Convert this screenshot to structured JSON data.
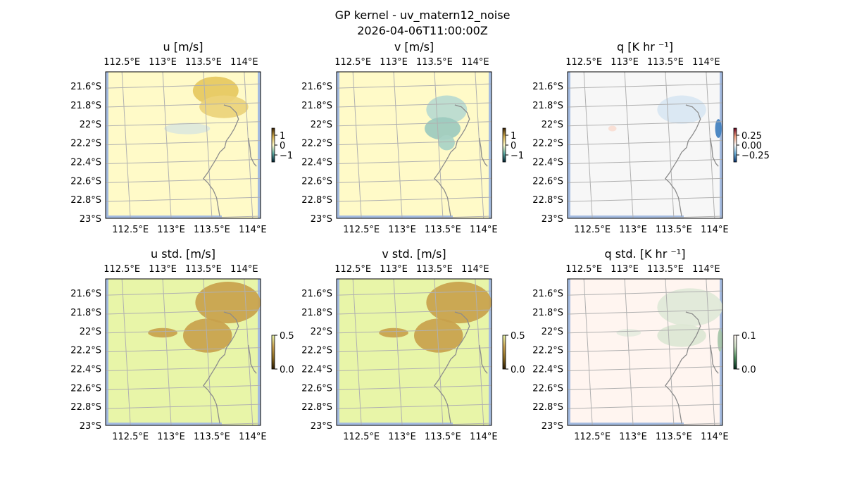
{
  "figure": {
    "title_line1": "GP kernel - uv_matern12_noise",
    "title_line2": "2026-04-06T11:00:00Z"
  },
  "colors": {
    "ocean": "#a4bbe0",
    "grid": "#b0b0b0",
    "coast": "#8c8c8c",
    "frame": "#000000"
  },
  "chart_data": [
    {
      "id": "u",
      "type": "heatmap",
      "title": "u [m/s]",
      "xlabel": "",
      "ylabel": "",
      "x_ticks": [
        "112.5°E",
        "113°E",
        "113.5°E",
        "114°E"
      ],
      "y_ticks": [
        "21.6°S",
        "21.8°S",
        "22°S",
        "22.2°S",
        "22.4°S",
        "22.6°S",
        "22.8°S",
        "23°S"
      ],
      "xlim": [
        112.3,
        114.2
      ],
      "ylim": [
        -23.0,
        -21.45
      ],
      "colorbar": {
        "ticks": [
          "1",
          "0",
          "−1"
        ],
        "range": [
          -1,
          1
        ],
        "stops": [
          "#002030",
          "#5aa8a0",
          "#fffac8",
          "#d4b050",
          "#3a2000"
        ]
      },
      "background": "#fffac8",
      "patches": [
        {
          "lon": 113.65,
          "lat": -21.65,
          "value": 0.45,
          "color": "#e6c85e",
          "rx": 0.28,
          "ry": 0.15
        },
        {
          "lon": 113.75,
          "lat": -21.82,
          "value": 0.3,
          "color": "#ecd37a",
          "rx": 0.3,
          "ry": 0.12
        },
        {
          "lon": 113.3,
          "lat": -22.05,
          "value": -0.1,
          "color": "#dde8dc",
          "rx": 0.28,
          "ry": 0.06
        }
      ]
    },
    {
      "id": "v",
      "type": "heatmap",
      "title": "v [m/s]",
      "xlabel": "",
      "ylabel": "",
      "x_ticks": [
        "112.5°E",
        "113°E",
        "113.5°E",
        "114°E"
      ],
      "y_ticks": [
        "21.6°S",
        "21.8°S",
        "22°S",
        "22.2°S",
        "22.4°S",
        "22.6°S",
        "22.8°S",
        "23°S"
      ],
      "xlim": [
        112.3,
        114.2
      ],
      "ylim": [
        -23.0,
        -21.45
      ],
      "colorbar": {
        "ticks": [
          "1",
          "0",
          "−1"
        ],
        "range": [
          -1,
          1
        ],
        "stops": [
          "#002030",
          "#5aa8a0",
          "#fffac8",
          "#d4b050",
          "#3a2000"
        ]
      },
      "background": "#fffac8",
      "patches": [
        {
          "lon": 113.65,
          "lat": -21.85,
          "value": -0.4,
          "color": "#b8dad0",
          "rx": 0.25,
          "ry": 0.15
        },
        {
          "lon": 113.6,
          "lat": -22.05,
          "value": -0.55,
          "color": "#9ccabe",
          "rx": 0.22,
          "ry": 0.12
        },
        {
          "lon": 113.65,
          "lat": -22.2,
          "value": -0.5,
          "color": "#a8d2c6",
          "rx": 0.1,
          "ry": 0.08
        }
      ]
    },
    {
      "id": "q",
      "type": "heatmap",
      "title": "q [K hr ⁻¹]",
      "xlabel": "",
      "ylabel": "",
      "x_ticks": [
        "112.5°E",
        "113°E",
        "113.5°E",
        "114°E"
      ],
      "y_ticks": [
        "21.6°S",
        "21.8°S",
        "22°S",
        "22.2°S",
        "22.4°S",
        "22.6°S",
        "22.8°S",
        "23°S"
      ],
      "xlim": [
        112.3,
        114.2
      ],
      "ylim": [
        -23.0,
        -21.45
      ],
      "colorbar": {
        "ticks": [
          "0.25",
          "0.00",
          "−0.25"
        ],
        "range": [
          -0.35,
          0.35
        ],
        "stops": [
          "#08306b",
          "#6baed6",
          "#f7f7f7",
          "#f4a582",
          "#67001f"
        ]
      },
      "background": "#f7f7f7",
      "patches": [
        {
          "lon": 113.7,
          "lat": -21.85,
          "value": -0.05,
          "color": "#d8e6f2",
          "rx": 0.3,
          "ry": 0.15
        },
        {
          "lon": 114.15,
          "lat": -22.05,
          "value": -0.35,
          "color": "#3f7fbf",
          "rx": 0.04,
          "ry": 0.1
        },
        {
          "lon": 112.85,
          "lat": -22.05,
          "value": 0.03,
          "color": "#f8ddd2",
          "rx": 0.05,
          "ry": 0.03
        }
      ]
    },
    {
      "id": "u_std",
      "type": "heatmap",
      "title": "u std. [m/s]",
      "xlabel": "",
      "ylabel": "",
      "x_ticks": [
        "112.5°E",
        "113°E",
        "113.5°E",
        "114°E"
      ],
      "y_ticks": [
        "21.6°S",
        "21.8°S",
        "22°S",
        "22.2°S",
        "22.4°S",
        "22.6°S",
        "22.8°S",
        "23°S"
      ],
      "xlim": [
        112.3,
        114.2
      ],
      "ylim": [
        -23.0,
        -21.45
      ],
      "colorbar": {
        "ticks": [
          "0.5",
          "0.0"
        ],
        "range": [
          0,
          0.5
        ],
        "stops": [
          "#2a1a00",
          "#8a6a20",
          "#c8a050",
          "#e8f5a8"
        ]
      },
      "background": "#e8f5a8",
      "patches": [
        {
          "lon": 113.8,
          "lat": -21.7,
          "value": 0.15,
          "color": "#c8a14c",
          "rx": 0.4,
          "ry": 0.22
        },
        {
          "lon": 113.55,
          "lat": -22.05,
          "value": 0.15,
          "color": "#c8a14c",
          "rx": 0.3,
          "ry": 0.18
        },
        {
          "lon": 113.0,
          "lat": -22.02,
          "value": 0.15,
          "color": "#c8a14c",
          "rx": 0.18,
          "ry": 0.05
        }
      ]
    },
    {
      "id": "v_std",
      "type": "heatmap",
      "title": "v std. [m/s]",
      "xlabel": "",
      "ylabel": "",
      "x_ticks": [
        "112.5°E",
        "113°E",
        "113.5°E",
        "114°E"
      ],
      "y_ticks": [
        "21.6°S",
        "21.8°S",
        "22°S",
        "22.2°S",
        "22.4°S",
        "22.6°S",
        "22.8°S",
        "23°S"
      ],
      "xlim": [
        112.3,
        114.2
      ],
      "ylim": [
        -23.0,
        -21.45
      ],
      "colorbar": {
        "ticks": [
          "0.5",
          "0.0"
        ],
        "range": [
          0,
          0.5
        ],
        "stops": [
          "#2a1a00",
          "#8a6a20",
          "#c8a050",
          "#e8f5a8"
        ]
      },
      "background": "#e8f5a8",
      "patches": [
        {
          "lon": 113.8,
          "lat": -21.7,
          "value": 0.15,
          "color": "#c8a14c",
          "rx": 0.4,
          "ry": 0.22
        },
        {
          "lon": 113.55,
          "lat": -22.05,
          "value": 0.15,
          "color": "#c8a14c",
          "rx": 0.3,
          "ry": 0.18
        },
        {
          "lon": 113.0,
          "lat": -22.02,
          "value": 0.15,
          "color": "#c8a14c",
          "rx": 0.18,
          "ry": 0.05
        }
      ]
    },
    {
      "id": "q_std",
      "type": "heatmap",
      "title": "q std. [K hr ⁻¹]",
      "xlabel": "",
      "ylabel": "",
      "x_ticks": [
        "112.5°E",
        "113°E",
        "113.5°E",
        "114°E"
      ],
      "y_ticks": [
        "21.6°S",
        "21.8°S",
        "22°S",
        "22.2°S",
        "22.4°S",
        "22.6°S",
        "22.8°S",
        "23°S"
      ],
      "xlim": [
        112.3,
        114.2
      ],
      "ylim": [
        -23.0,
        -21.45
      ],
      "colorbar": {
        "ticks": [
          "0.1",
          "0.0"
        ],
        "range": [
          0,
          0.1
        ],
        "stops": [
          "#00271a",
          "#4a8a5a",
          "#c8dcc0",
          "#fff5f0"
        ]
      },
      "background": "#fff5f0",
      "patches": [
        {
          "lon": 113.8,
          "lat": -21.75,
          "value": 0.02,
          "color": "#e0e8d8",
          "rx": 0.4,
          "ry": 0.2
        },
        {
          "lon": 113.7,
          "lat": -22.05,
          "value": 0.02,
          "color": "#dce6d4",
          "rx": 0.3,
          "ry": 0.12
        },
        {
          "lon": 113.05,
          "lat": -22.02,
          "value": 0.015,
          "color": "#e6ece0",
          "rx": 0.15,
          "ry": 0.04
        },
        {
          "lon": 114.17,
          "lat": -22.1,
          "value": 0.05,
          "color": "#a6c4a8",
          "rx": 0.03,
          "ry": 0.12
        }
      ]
    }
  ]
}
